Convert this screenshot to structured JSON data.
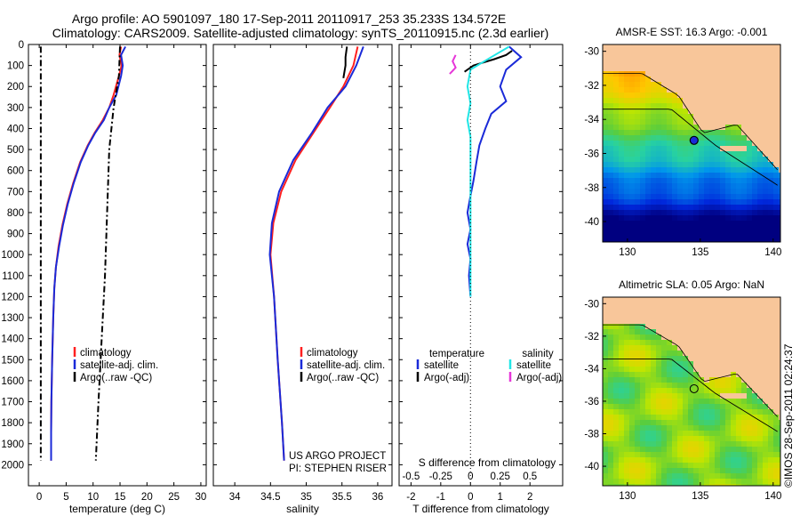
{
  "header": {
    "line1": "Argo profile: AO 5901097_180 17-Sep-2011 20110917_253 35.233S 134.572E",
    "line2": "Climatology: CARS2009. Satellite-adjusted climatology: synTS_20110915.nc (2.3d earlier)"
  },
  "colors": {
    "climatology": "#ff2020",
    "satellite": "#1a2ad8",
    "argo": "#000000",
    "sat_salinity": "#22e6e6",
    "argo_salinity": "#e636d8",
    "land": "#f8c69a"
  },
  "chart_data": [
    {
      "id": "temperature",
      "type": "line",
      "xlabel": "temperature (deg C)",
      "ylabel": "",
      "xlim": [
        -2,
        31
      ],
      "ylim": [
        2100,
        0
      ],
      "xticks": [
        0,
        5,
        10,
        15,
        20,
        25,
        30
      ],
      "yticks": [
        0,
        100,
        200,
        300,
        400,
        500,
        600,
        700,
        800,
        900,
        1000,
        1100,
        1200,
        1300,
        1400,
        1500,
        1600,
        1700,
        1800,
        1900,
        2000
      ],
      "legend": [
        "climatology",
        "satellite-adj. clim.",
        "Argo(..raw -QC)"
      ],
      "series": [
        {
          "name": "climatology",
          "color": "#ff2020",
          "style": "solid",
          "points": [
            [
              15.2,
              10
            ],
            [
              14.9,
              50
            ],
            [
              15.3,
              100
            ],
            [
              14.8,
              150
            ],
            [
              13.8,
              240
            ],
            [
              13.0,
              300
            ],
            [
              11.8,
              360
            ],
            [
              10.3,
              420
            ],
            [
              9.0,
              480
            ],
            [
              7.6,
              560
            ],
            [
              6.3,
              660
            ],
            [
              5.2,
              760
            ],
            [
              4.3,
              860
            ],
            [
              3.6,
              960
            ],
            [
              3.1,
              1060
            ],
            [
              2.8,
              1160
            ],
            [
              2.6,
              1300
            ],
            [
              2.4,
              1500
            ],
            [
              2.25,
              1700
            ],
            [
              2.2,
              1850
            ],
            [
              2.2,
              1980
            ]
          ]
        },
        {
          "name": "satellite-adj. clim.",
          "color": "#1a2ad8",
          "style": "solid",
          "points": [
            [
              16.0,
              10
            ],
            [
              15.2,
              50
            ],
            [
              15.5,
              100
            ],
            [
              15.2,
              150
            ],
            [
              14.3,
              240
            ],
            [
              13.0,
              300
            ],
            [
              12.0,
              360
            ],
            [
              10.4,
              420
            ],
            [
              9.1,
              480
            ],
            [
              7.7,
              560
            ],
            [
              6.4,
              660
            ],
            [
              5.3,
              760
            ],
            [
              4.4,
              860
            ],
            [
              3.7,
              960
            ],
            [
              3.1,
              1060
            ],
            [
              2.8,
              1160
            ],
            [
              2.6,
              1300
            ],
            [
              2.4,
              1500
            ],
            [
              2.25,
              1700
            ],
            [
              2.2,
              1850
            ],
            [
              2.2,
              1980
            ]
          ]
        },
        {
          "name": "Argo raw",
          "color": "#000000",
          "style": "dashdot",
          "points": [
            [
              15.0,
              10
            ],
            [
              14.8,
              150
            ],
            [
              13.8,
              300
            ],
            [
              13.0,
              500
            ],
            [
              12.6,
              800
            ],
            [
              12.2,
              1100
            ],
            [
              11.6,
              1400
            ],
            [
              11.0,
              1700
            ],
            [
              10.5,
              1980
            ]
          ]
        },
        {
          "name": "Argo raw",
          "color": "#000000",
          "style": "dashdot",
          "points": [
            [
              0.3,
              10
            ],
            [
              0.3,
              1980
            ]
          ]
        }
      ]
    },
    {
      "id": "salinity",
      "type": "line",
      "xlabel": "salinity",
      "ylabel": "",
      "xlim": [
        33.7,
        36.2
      ],
      "ylim": [
        2100,
        0
      ],
      "xticks": [
        34,
        34.5,
        35,
        35.5,
        36
      ],
      "yticks": [
        0,
        100,
        200,
        300,
        400,
        500,
        600,
        700,
        800,
        900,
        1000,
        1100,
        1200,
        1300,
        1400,
        1500,
        1600,
        1700,
        1800,
        1900,
        2000
      ],
      "legend": [
        "climatology",
        "satellite-adj. clim.",
        "Argo(..raw -QC)"
      ],
      "annotation": [
        "US ARGO PROJECT",
        "PI: STEPHEN RISER"
      ],
      "series": [
        {
          "name": "climatology",
          "color": "#ff2020",
          "style": "solid",
          "points": [
            [
              35.72,
              10
            ],
            [
              35.66,
              100
            ],
            [
              35.52,
              200
            ],
            [
              35.33,
              300
            ],
            [
              35.1,
              420
            ],
            [
              34.85,
              550
            ],
            [
              34.65,
              700
            ],
            [
              34.54,
              850
            ],
            [
              34.5,
              1000
            ],
            [
              34.55,
              1200
            ],
            [
              34.6,
              1500
            ],
            [
              34.66,
              1800
            ],
            [
              34.69,
              1980
            ]
          ]
        },
        {
          "name": "satellite-adj. clim.",
          "color": "#1a2ad8",
          "style": "solid",
          "points": [
            [
              35.8,
              10
            ],
            [
              35.7,
              100
            ],
            [
              35.55,
              200
            ],
            [
              35.3,
              300
            ],
            [
              35.08,
              420
            ],
            [
              34.82,
              550
            ],
            [
              34.62,
              700
            ],
            [
              34.52,
              850
            ],
            [
              34.49,
              1000
            ],
            [
              34.55,
              1200
            ],
            [
              34.6,
              1500
            ],
            [
              34.66,
              1800
            ],
            [
              34.69,
              1980
            ]
          ]
        },
        {
          "name": "Argo raw",
          "color": "#000000",
          "style": "solid",
          "points": [
            [
              35.57,
              10
            ],
            [
              35.55,
              60
            ],
            [
              35.55,
              100
            ],
            [
              35.52,
              160
            ]
          ]
        }
      ]
    },
    {
      "id": "difference",
      "type": "line",
      "xlabel": "T difference from climatology",
      "ylabel": "",
      "xlabel_top": "S difference from climatology",
      "xlim": [
        -2.4,
        3.1
      ],
      "ylim": [
        2100,
        0
      ],
      "xticks": [
        -2,
        -1,
        0,
        1,
        2
      ],
      "s_xticks": [
        -0.5,
        -0.25,
        0,
        0.25,
        0.5
      ],
      "s_scale": 4,
      "yticks": [
        0,
        100,
        200,
        300,
        400,
        500,
        600,
        700,
        800,
        900,
        1000,
        1100,
        1200,
        1300,
        1400,
        1500,
        1600,
        1700,
        1800,
        1900,
        2000
      ],
      "legend_headers": [
        "temperature",
        "salinity"
      ],
      "legend_temperature": [
        "satellite",
        "Argo(-adj)"
      ],
      "legend_salinity": [
        "satellite",
        "Argo(-adj)"
      ],
      "series": [
        {
          "name": "satellite",
          "color": "#1a2ad8",
          "style": "solid",
          "points": [
            [
              1.3,
              10
            ],
            [
              1.7,
              60
            ],
            [
              1.2,
              120
            ],
            [
              1.0,
              200
            ],
            [
              1.2,
              270
            ],
            [
              0.7,
              330
            ],
            [
              0.5,
              400
            ],
            [
              0.3,
              480
            ],
            [
              0.2,
              560
            ],
            [
              0.1,
              650
            ],
            [
              0.0,
              720
            ],
            [
              -0.1,
              800
            ],
            [
              0.0,
              880
            ],
            [
              -0.1,
              950
            ],
            [
              0.0,
              1020
            ],
            [
              -0.05,
              1100
            ],
            [
              0.0,
              1200
            ]
          ]
        },
        {
          "name": "Argo(-adj)",
          "color": "#000000",
          "style": "solid",
          "points": [
            [
              -0.2,
              130
            ],
            [
              0.1,
              100
            ],
            [
              0.8,
              70
            ],
            [
              1.2,
              50
            ],
            [
              1.4,
              30
            ]
          ]
        },
        {
          "name": "satellite",
          "color": "#22e6e6",
          "style": "solid",
          "points": [
            [
              1.3,
              10
            ],
            [
              0.7,
              60
            ],
            [
              0.0,
              120
            ],
            [
              -0.1,
              200
            ],
            [
              0.0,
              280
            ],
            [
              -0.1,
              360
            ],
            [
              0.0,
              440
            ],
            [
              0.0,
              520
            ],
            [
              0.0,
              600
            ],
            [
              0.0,
              800
            ],
            [
              0.0,
              1000
            ],
            [
              0.0,
              1200
            ]
          ]
        },
        {
          "name": "Argo(-adj)",
          "color": "#e636d8",
          "style": "solid",
          "points": [
            [
              -0.5,
              50
            ],
            [
              -0.6,
              80
            ],
            [
              -0.5,
              110
            ],
            [
              -0.7,
              140
            ]
          ]
        }
      ]
    },
    {
      "id": "sst_map",
      "type": "heatmap",
      "title": "AMSR-E SST: 16.3 Argo: -0.001",
      "xticks": [
        130,
        135,
        140
      ],
      "yticks": [
        -30,
        -32,
        -34,
        -36,
        -38,
        -40
      ],
      "xlim": [
        128.3,
        140.5
      ],
      "ylim": [
        -41.2,
        -29.6
      ],
      "float_position": [
        134.572,
        -35.233
      ]
    },
    {
      "id": "sla_map",
      "type": "heatmap",
      "title": "Altimetric SLA: 0.05 Argo: NaN",
      "xticks": [
        130,
        135,
        140
      ],
      "yticks": [
        -30,
        -32,
        -34,
        -36,
        -38,
        -40
      ],
      "xlim": [
        128.3,
        140.5
      ],
      "ylim": [
        -41.2,
        -29.6
      ],
      "float_position": [
        134.572,
        -35.233
      ]
    }
  ],
  "credit": "©IMOS 28-Sep-2011 02:24:37"
}
